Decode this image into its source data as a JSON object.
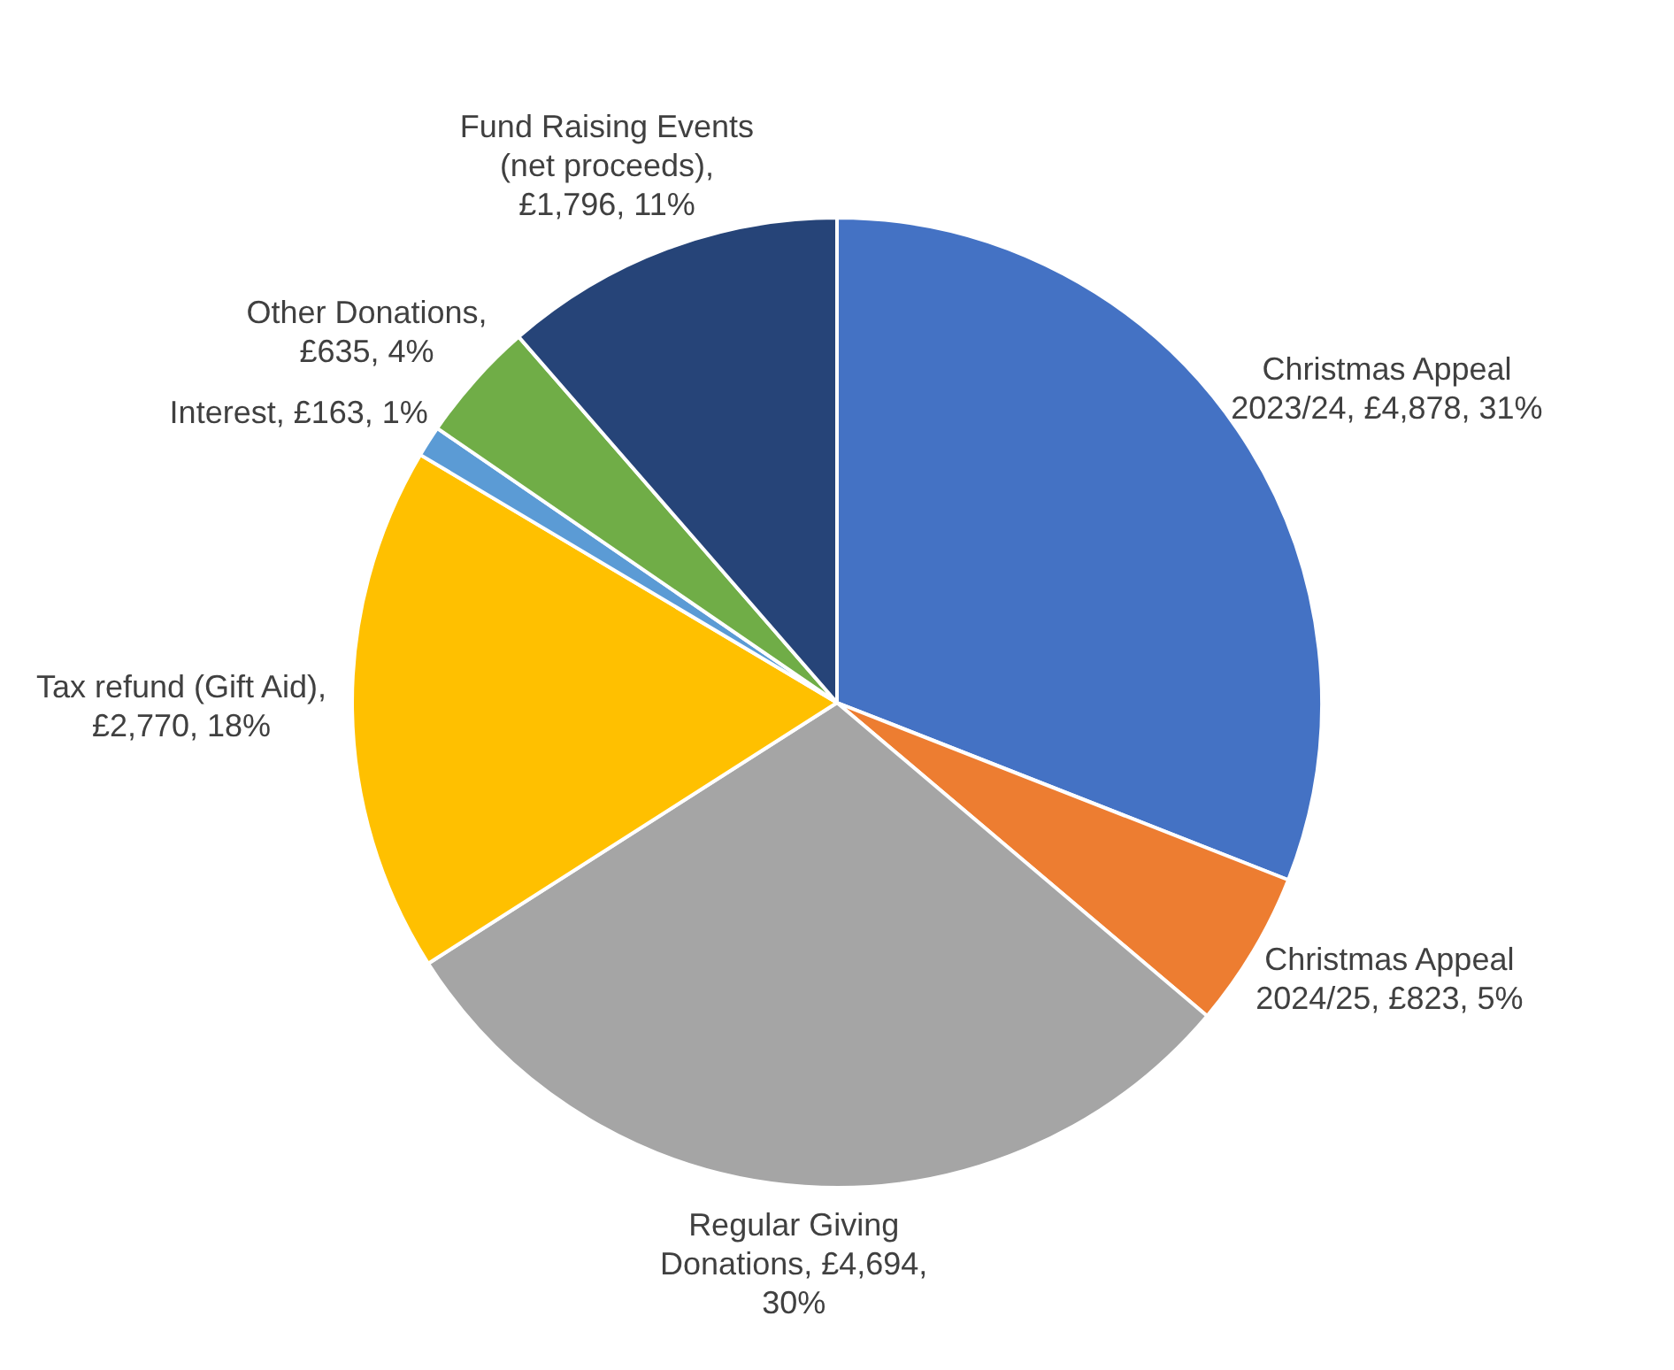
{
  "chart_data": {
    "type": "pie",
    "categories": [
      "Christmas Appeal 2023/24",
      "Christmas Appeal 2024/25",
      "Regular Giving Donations",
      "Tax refund (Gift Aid)",
      "Interest",
      "Other Donations",
      "Fund Raising Events (net proceeds)"
    ],
    "values": [
      4878,
      823,
      4694,
      2770,
      163,
      635,
      1796
    ],
    "value_labels": [
      ", £4,878, 31%",
      ", £823, 5%",
      ", £4,694, 30%",
      ", £2,770, 18%",
      ", £163, 1%",
      ", £635, 4%",
      ", £1,796, 11%"
    ],
    "colors": [
      "#4472c4",
      "#ed7d31",
      "#a5a5a5",
      "#ffc000",
      "#5b9bd5",
      "#70ad47",
      "#264478"
    ]
  }
}
